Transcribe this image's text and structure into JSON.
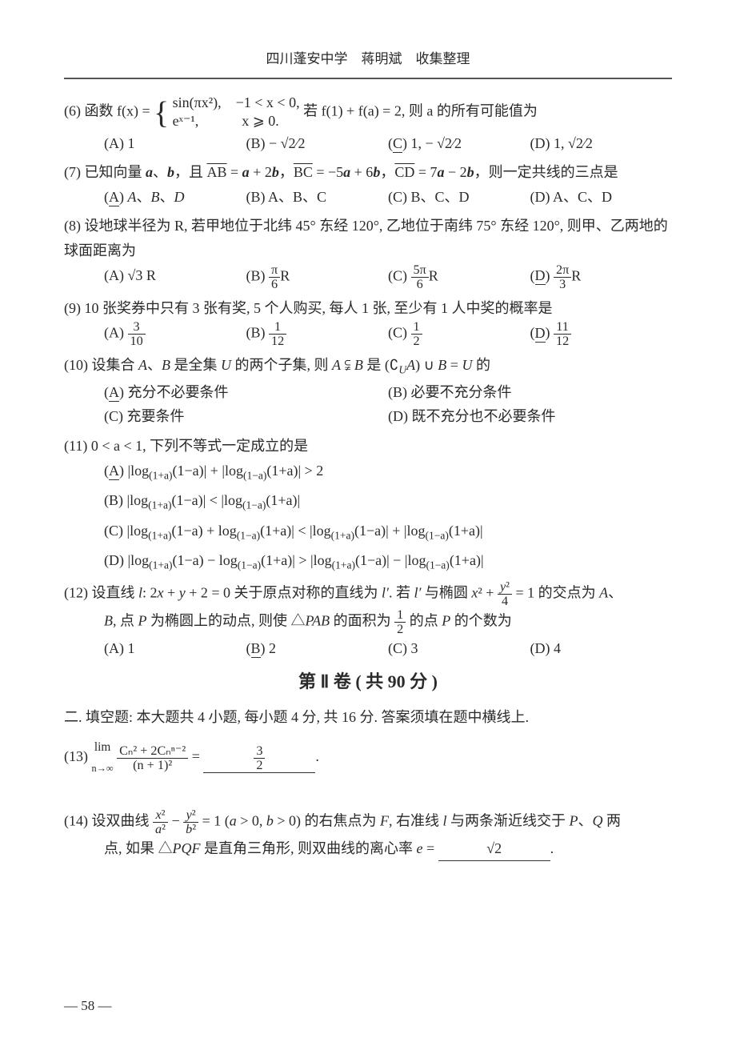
{
  "header": "四川蓬安中学　蒋明斌　收集整理",
  "q6": {
    "num": "(6)",
    "pre": "函数 f(x) = ",
    "branch1": "sin(πx²),　−1 < x < 0,",
    "branch2": "eˣ⁻¹,　　　x ⩾ 0.",
    "post": "若 f(1) + f(a) = 2, 则 a 的所有可能值为",
    "A": "(A) 1",
    "B": "(B) − √2⁄2",
    "C": "(C) 1, − √2⁄2",
    "D": "(D) 1, √2⁄2"
  },
  "q7": {
    "num": "(7)",
    "text": "已知向量 a、b，且 AB = a + 2b，BC = −5a + 6b，CD = 7a − 2b，则一定共线的三点是",
    "A": "(A) A、B、D",
    "B": "(B) A、B、C",
    "C": "(C) B、C、D",
    "D": "(D) A、C、D"
  },
  "q8": {
    "num": "(8)",
    "text": "设地球半径为 R, 若甲地位于北纬 45° 东经 120°, 乙地位于南纬 75° 东经 120°, 则甲、乙两地的球面距离为",
    "A": "(A) √3 R",
    "B": "(B) π⁄6 R",
    "C": "(C) 5π⁄6 R",
    "D": "(D) 2π⁄3 R"
  },
  "q9": {
    "num": "(9)",
    "text": "10 张奖券中只有 3 张有奖, 5 个人购买, 每人 1 张, 至少有 1 人中奖的概率是",
    "A": "(A) 3⁄10",
    "B": "(B) 1⁄12",
    "C": "(C) 1⁄2",
    "D": "(D) 11⁄12"
  },
  "q10": {
    "num": "(10)",
    "text": "设集合 A、B 是全集 U 的两个子集, 则 A ⫋ B 是 (∁_U A) ∪ B = U 的",
    "A": "(A) 充分不必要条件",
    "B": "(B) 必要不充分条件",
    "C": "(C) 充要条件",
    "D": "(D) 既不充分也不必要条件"
  },
  "q11": {
    "num": "(11)",
    "text": "0 < a < 1, 下列不等式一定成立的是",
    "A": "(A) |log₍₁₊ₐ₎(1−a)| + |log₍₁₋ₐ₎(1+a)| > 2",
    "B": "(B) |log₍₁₊ₐ₎(1−a)| < |log₍₁₋ₐ₎(1+a)|",
    "C": "(C) |log₍₁₊ₐ₎(1−a) + log₍₁₋ₐ₎(1+a)| < |log₍₁₊ₐ₎(1−a)| + |log₍₁₋ₐ₎(1+a)|",
    "D": "(D) |log₍₁₊ₐ₎(1−a) − log₍₁₋ₐ₎(1+a)| > |log₍₁₊ₐ₎(1−a)| − |log₍₁₋ₐ₎(1+a)|"
  },
  "q12": {
    "num": "(12)",
    "text1": "设直线 l: 2x + y + 2 = 0 关于原点对称的直线为 l′. 若 l′ 与椭圆 x² + y²⁄4 = 1 的交点为 A、",
    "text2": "B, 点 P 为椭圆上的动点, 则使 △PAB 的面积为 1⁄2 的点 P 的个数为",
    "A": "(A) 1",
    "B": "(B) 2",
    "C": "(C) 3",
    "D": "(D) 4"
  },
  "section2": "第 Ⅱ 卷 ( 共 90 分 )",
  "fillInstr": "二. 填空题: 本大题共 4 小题, 每小题 4 分, 共 16 分. 答案须填在题中横线上.",
  "q13": {
    "num": "(13)",
    "lhs_pre": " lim",
    "lhs_sub": "n→∞",
    "num_top": "Cₙ² + 2Cₙⁿ⁻²",
    "num_bot": "(n + 1)²",
    "eq": " = ",
    "ans": "3⁄2"
  },
  "q14": {
    "num": "(14)",
    "text1": "设双曲线 x²⁄a² − y²⁄b² = 1 (a > 0, b > 0) 的右焦点为 F, 右准线 l 与两条渐近线交于 P、Q 两",
    "text2": "点, 如果 △PQF 是直角三角形, 则双曲线的离心率 e = ",
    "ans": "√2"
  },
  "pagenum": "— 58 —"
}
